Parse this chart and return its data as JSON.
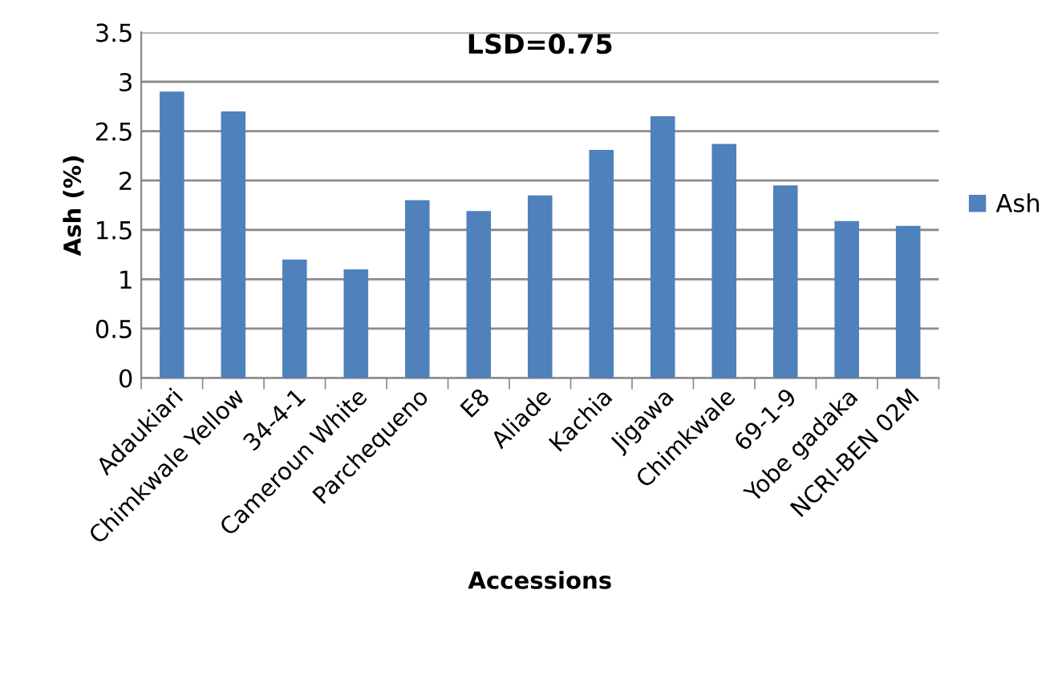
{
  "chart_data": {
    "type": "bar",
    "categories": [
      "Adaukiari",
      "Chimkwale Yellow",
      "34-4-1",
      "Cameroun White",
      "Parchequeno",
      "E8",
      "Aliade",
      "Kachia",
      "Jigawa",
      "Chimkwale",
      "69-1-9",
      "Yobe gadaka",
      "NCRI-BEN 02M"
    ],
    "series": [
      {
        "name": "Ash",
        "color": "#4f81bd",
        "values": [
          2.9,
          2.7,
          1.2,
          1.1,
          1.8,
          1.69,
          1.85,
          2.31,
          2.65,
          2.37,
          1.95,
          1.59,
          1.54
        ]
      }
    ],
    "xlabel": "Accessions",
    "ylabel": "Ash (%)",
    "annotations": [
      "LSD=0.75"
    ],
    "ylim": [
      0,
      3.5
    ],
    "yticks": [
      0,
      0.5,
      1,
      1.5,
      2,
      2.5,
      3,
      3.5
    ],
    "grid": "y",
    "legend": "right"
  }
}
